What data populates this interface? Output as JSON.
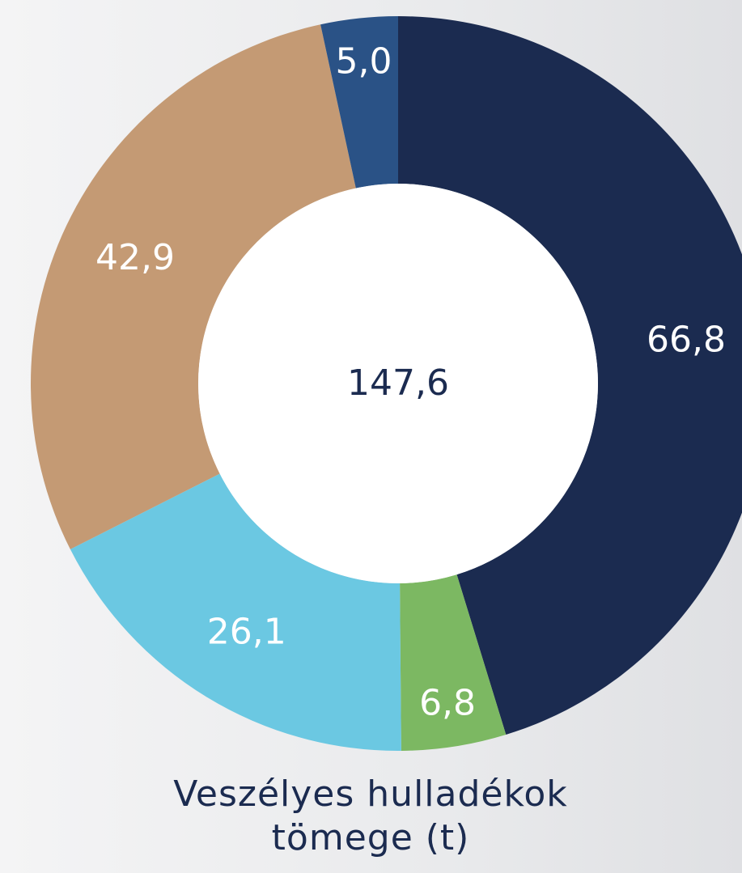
{
  "chart_data": {
    "type": "donut",
    "title": "Veszélyes hulladékok tömege (t)",
    "center_label": "147,6",
    "values": [
      66.8,
      6.8,
      26.1,
      42.9,
      5.0
    ],
    "value_labels": [
      "66,8",
      "6,8",
      "26,1",
      "42,9",
      "5,0"
    ],
    "colors": [
      "#1b2b50",
      "#7cb862",
      "#6bc8e2",
      "#c49a74",
      "#2a5286"
    ]
  }
}
